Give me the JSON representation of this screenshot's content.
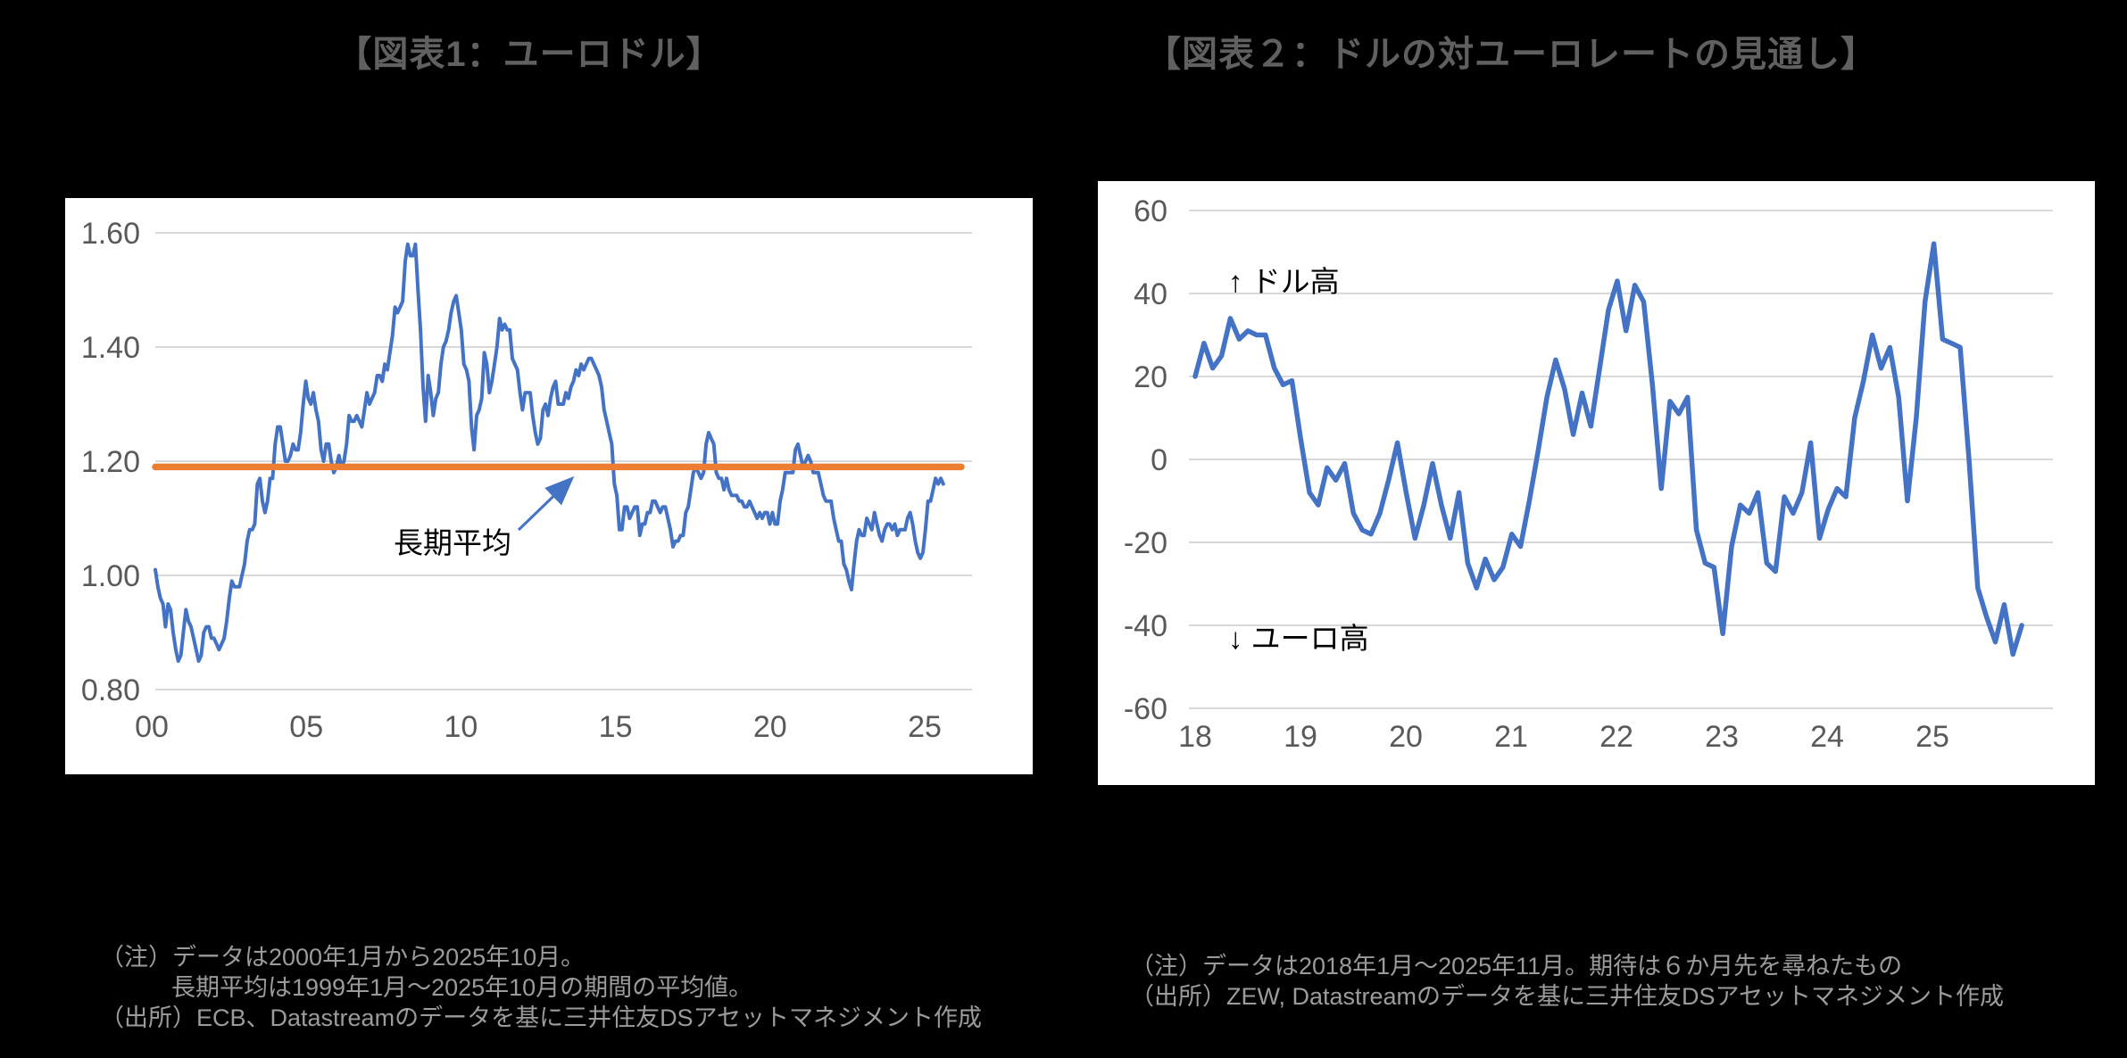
{
  "figure1": {
    "title": "【図表1：ユーロドル】",
    "note1": "（注）データは2000年1月から2025年10月。",
    "note2": "長期平均は1999年1月～2025年10月の期間の平均値。",
    "note3": "（出所）ECB、Datastreamのデータを基に三井住友DSアセットマネジメント作成",
    "chart_data": {
      "type": "line",
      "title": "【図表1：ユーロドル】",
      "x_start": "2000-01",
      "x_end": "2025-10",
      "freq": "monthly",
      "x_tick_labels": [
        "00",
        "05",
        "10",
        "15",
        "20",
        "25"
      ],
      "y_ticks": [
        0.8,
        1.0,
        1.2,
        1.4,
        1.6
      ],
      "y_tick_labels": [
        "0.80",
        "1.00",
        "1.20",
        "1.40",
        "1.60"
      ],
      "ylim": [
        0.8,
        1.6
      ],
      "grid": true,
      "legend": false,
      "reference_line": {
        "label": "長期平均",
        "value": 1.19,
        "color": "#ED7D31"
      },
      "series": [
        {
          "name": "ユーロドル",
          "color": "#4472C4",
          "values": [
            1.01,
            0.98,
            0.96,
            0.95,
            0.91,
            0.95,
            0.94,
            0.9,
            0.87,
            0.85,
            0.86,
            0.9,
            0.94,
            0.92,
            0.91,
            0.89,
            0.87,
            0.85,
            0.86,
            0.9,
            0.91,
            0.91,
            0.89,
            0.89,
            0.88,
            0.87,
            0.88,
            0.89,
            0.92,
            0.96,
            0.99,
            0.98,
            0.98,
            0.98,
            1.0,
            1.02,
            1.06,
            1.08,
            1.08,
            1.09,
            1.16,
            1.17,
            1.13,
            1.11,
            1.13,
            1.17,
            1.17,
            1.23,
            1.26,
            1.26,
            1.23,
            1.2,
            1.2,
            1.21,
            1.23,
            1.22,
            1.22,
            1.25,
            1.3,
            1.34,
            1.31,
            1.3,
            1.32,
            1.29,
            1.27,
            1.22,
            1.2,
            1.23,
            1.23,
            1.2,
            1.18,
            1.19,
            1.21,
            1.19,
            1.2,
            1.23,
            1.28,
            1.27,
            1.27,
            1.28,
            1.27,
            1.26,
            1.29,
            1.32,
            1.3,
            1.31,
            1.32,
            1.35,
            1.35,
            1.34,
            1.37,
            1.36,
            1.39,
            1.42,
            1.47,
            1.46,
            1.47,
            1.48,
            1.55,
            1.58,
            1.56,
            1.56,
            1.58,
            1.5,
            1.43,
            1.33,
            1.27,
            1.35,
            1.32,
            1.28,
            1.31,
            1.32,
            1.37,
            1.4,
            1.41,
            1.43,
            1.46,
            1.48,
            1.49,
            1.46,
            1.43,
            1.37,
            1.36,
            1.34,
            1.26,
            1.22,
            1.28,
            1.29,
            1.31,
            1.39,
            1.37,
            1.32,
            1.34,
            1.37,
            1.4,
            1.45,
            1.43,
            1.44,
            1.43,
            1.43,
            1.38,
            1.37,
            1.36,
            1.32,
            1.29,
            1.32,
            1.32,
            1.32,
            1.28,
            1.25,
            1.23,
            1.24,
            1.29,
            1.3,
            1.28,
            1.31,
            1.33,
            1.34,
            1.3,
            1.3,
            1.3,
            1.32,
            1.31,
            1.33,
            1.34,
            1.36,
            1.35,
            1.37,
            1.36,
            1.37,
            1.38,
            1.38,
            1.37,
            1.36,
            1.35,
            1.33,
            1.29,
            1.27,
            1.25,
            1.23,
            1.16,
            1.14,
            1.08,
            1.08,
            1.12,
            1.12,
            1.1,
            1.11,
            1.12,
            1.12,
            1.07,
            1.09,
            1.09,
            1.11,
            1.11,
            1.13,
            1.13,
            1.12,
            1.11,
            1.12,
            1.12,
            1.1,
            1.08,
            1.05,
            1.06,
            1.06,
            1.07,
            1.07,
            1.11,
            1.12,
            1.15,
            1.18,
            1.19,
            1.18,
            1.17,
            1.18,
            1.23,
            1.25,
            1.24,
            1.23,
            1.18,
            1.17,
            1.17,
            1.15,
            1.17,
            1.15,
            1.14,
            1.14,
            1.14,
            1.13,
            1.13,
            1.12,
            1.12,
            1.13,
            1.12,
            1.11,
            1.1,
            1.11,
            1.1,
            1.11,
            1.11,
            1.09,
            1.11,
            1.09,
            1.09,
            1.13,
            1.15,
            1.18,
            1.18,
            1.18,
            1.18,
            1.22,
            1.23,
            1.21,
            1.19,
            1.2,
            1.21,
            1.2,
            1.18,
            1.18,
            1.18,
            1.16,
            1.14,
            1.13,
            1.13,
            1.13,
            1.1,
            1.08,
            1.06,
            1.06,
            1.02,
            1.01,
            0.99,
            0.975,
            1.02,
            1.06,
            1.08,
            1.07,
            1.07,
            1.1,
            1.09,
            1.08,
            1.11,
            1.09,
            1.07,
            1.06,
            1.08,
            1.09,
            1.09,
            1.08,
            1.09,
            1.07,
            1.08,
            1.08,
            1.08,
            1.1,
            1.11,
            1.09,
            1.06,
            1.04,
            1.03,
            1.04,
            1.08,
            1.13,
            1.13,
            1.15,
            1.17,
            1.16,
            1.17,
            1.16
          ]
        }
      ]
    }
  },
  "figure2": {
    "title": "【図表２：ドルの対ユーロレートの見通し】",
    "note1": "（注）データは2018年1月～2025年11月。期待は６か月先を尋ねたもの",
    "note2": "（出所）ZEW, Datastreamのデータを基に三井住友DSアセットマネジメント作成",
    "chart_data": {
      "type": "line",
      "title": "【図表２：ドルの対ユーロレートの見通し】",
      "x_start": "2018-01",
      "x_end": "2025-11",
      "freq": "monthly",
      "x_tick_labels": [
        "18",
        "19",
        "20",
        "21",
        "22",
        "23",
        "24",
        "25"
      ],
      "y_ticks": [
        -60,
        -40,
        -20,
        0,
        20,
        40,
        60
      ],
      "y_tick_labels": [
        "-60",
        "-40",
        "-20",
        "0",
        "20",
        "40",
        "60"
      ],
      "ylim": [
        -60,
        60
      ],
      "grid": true,
      "legend": false,
      "direction_labels": {
        "up": "↑ ドル高",
        "down": "↓ ユーロ高"
      },
      "series": [
        {
          "name": "ドルの対ユーロレートの見通し（ZEW）",
          "color": "#4472C4",
          "values": [
            20,
            28,
            22,
            25,
            34,
            29,
            31,
            30,
            30,
            22,
            18,
            19,
            5,
            -8,
            -11,
            -2,
            -5,
            -1,
            -13,
            -17,
            -18,
            -13,
            -5,
            4,
            -8,
            -19,
            -11,
            -1,
            -11,
            -19,
            -8,
            -25,
            -31,
            -24,
            -29,
            -26,
            -18,
            -21,
            -10,
            2,
            15,
            24,
            17,
            6,
            16,
            8,
            22,
            36,
            43,
            31,
            42,
            38,
            18,
            -7,
            14,
            11,
            15,
            -17,
            -25,
            -26,
            -42,
            -21,
            -11,
            -13,
            -8,
            -25,
            -27,
            -9,
            -13,
            -8,
            4,
            -19,
            -12,
            -7,
            -9,
            10,
            19,
            30,
            22,
            27,
            15,
            -10,
            10,
            38,
            52,
            29,
            28,
            27,
            0,
            -31,
            -38,
            -44,
            -35,
            -47,
            -40
          ]
        }
      ]
    }
  }
}
